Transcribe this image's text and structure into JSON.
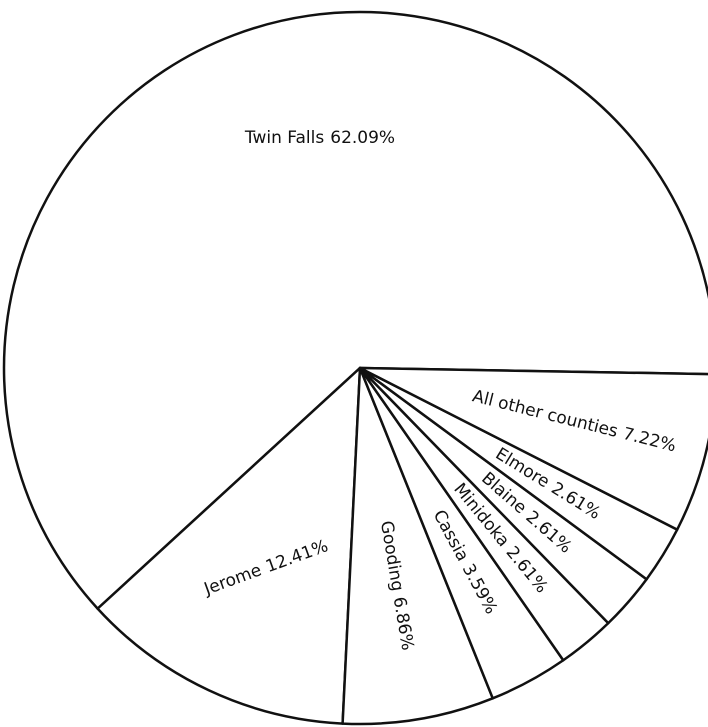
{
  "chart_data": {
    "type": "pie",
    "categories": [
      "Twin Falls",
      "Jerome",
      "Gooding",
      "Cassia",
      "Minidoka",
      "Blaine",
      "Elmore",
      "All other counties"
    ],
    "values": [
      62.09,
      12.41,
      6.86,
      3.59,
      2.61,
      2.61,
      2.61,
      7.22
    ],
    "value_labels": [
      "62.09%",
      "12.41%",
      "6.86%",
      "3.59%",
      "2.61%",
      "2.61%",
      "2.61%",
      "7.22%"
    ],
    "color": "#ffffff"
  }
}
